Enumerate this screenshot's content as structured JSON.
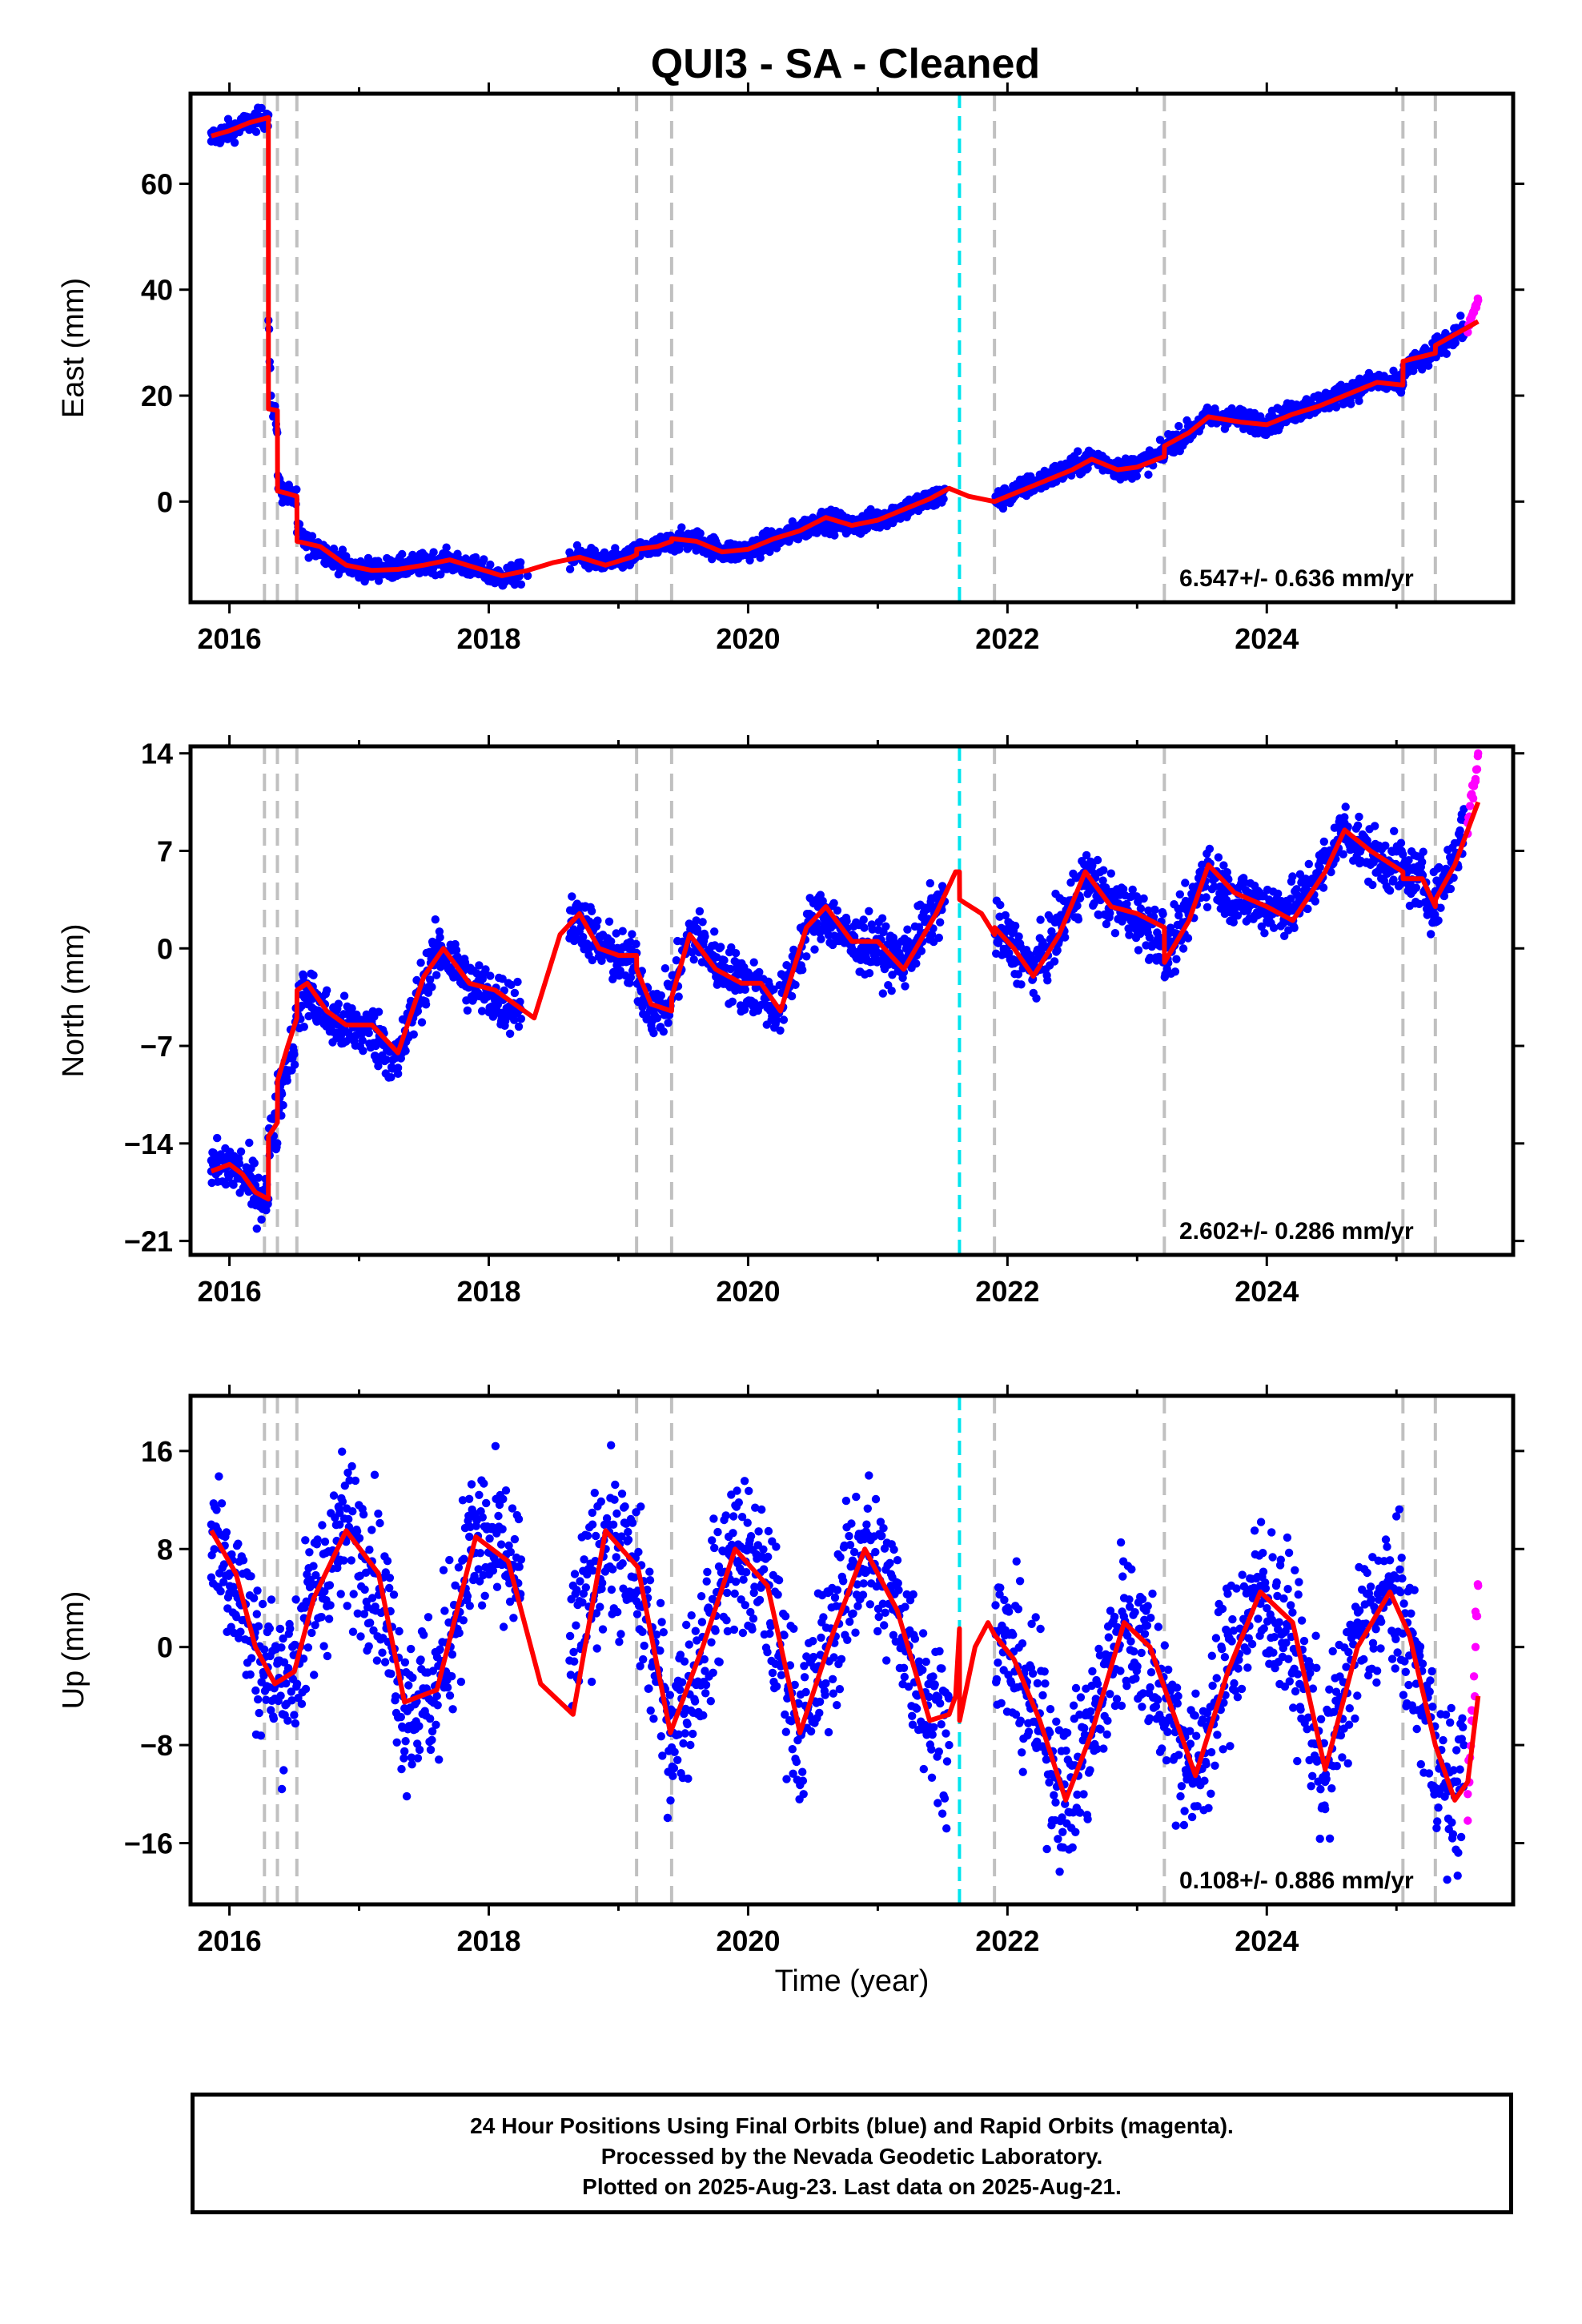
{
  "title": "QUI3  - SA - Cleaned",
  "xlabel": "Time (year)",
  "footer": {
    "line1": "24 Hour Positions Using Final Orbits (blue) and Rapid Orbits (magenta).",
    "line2": "Processed by the Nevada Geodetic Laboratory.",
    "line3": "Plotted on 2025-Aug-23. Last data on 2025-Aug-21."
  },
  "colors": {
    "final_orbits": "#0000ff",
    "rapid_orbits": "#ff00ff",
    "model_fit": "#ff0000",
    "antenna_change": "#c0c0c0",
    "earthquake": "#00e5ee"
  },
  "chart_data": [
    {
      "type": "scatter",
      "component": "east",
      "ylabel": "East (mm)",
      "ylim": [
        -19,
        77
      ],
      "xlim": [
        2015.7,
        2025.9
      ],
      "yticks": [
        0,
        20,
        40,
        60
      ],
      "xticks": [
        2016,
        2018,
        2020,
        2022,
        2024
      ],
      "rate": "6.547+/- 0.636 mm/yr",
      "antenna_change_lines": [
        2016.27,
        2016.37,
        2016.52,
        2019.14,
        2019.41,
        2021.9,
        2023.21,
        2025.05,
        2025.3
      ],
      "earthquake_lines": [
        2021.63
      ],
      "series": [
        {
          "kind": "final_orbits",
          "x": [
            2015.86,
            2016.0,
            2016.2,
            2016.3,
            2016.32,
            2016.4,
            2016.5,
            2016.6,
            2016.8,
            2017.0,
            2017.3,
            2017.6,
            2017.9,
            2018.1,
            2018.3,
            2018.7,
            2019.0,
            2019.3,
            2019.6,
            2019.9,
            2020.2,
            2020.5,
            2020.8,
            2021.1,
            2021.4,
            2021.91,
            2022.2,
            2022.5,
            2022.7,
            2022.9,
            2023.2,
            2023.5,
            2023.7,
            2024.0,
            2024.3,
            2024.6,
            2024.8,
            2025.05,
            2025.3,
            2025.52
          ],
          "values": [
            68,
            70,
            72,
            73,
            20,
            2,
            0,
            -8,
            -11,
            -13,
            -12,
            -11,
            -13,
            -15,
            -14,
            -10,
            -11,
            -9,
            -7,
            -10,
            -8,
            -4,
            -5,
            -2,
            0,
            0,
            4,
            7,
            9,
            6,
            10,
            15,
            17,
            15,
            19,
            21,
            23,
            22,
            28,
            33
          ]
        },
        {
          "kind": "rapid_orbits",
          "x": [
            2025.55,
            2025.58,
            2025.61,
            2025.63
          ],
          "values": [
            32,
            35,
            37,
            38
          ]
        }
      ],
      "model": {
        "x": [
          2015.86,
          2016.0,
          2016.15,
          2016.3,
          2016.301,
          2016.37,
          2016.371,
          2016.45,
          2016.52,
          2016.521,
          2016.7,
          2016.9,
          2017.1,
          2017.3,
          2017.5,
          2017.7,
          2017.9,
          2018.1,
          2018.3,
          2018.5,
          2018.7,
          2018.9,
          2019.1,
          2019.14,
          2019.141,
          2019.3,
          2019.41,
          2019.411,
          2019.6,
          2019.8,
          2020.0,
          2020.2,
          2020.4,
          2020.6,
          2020.8,
          2021.0,
          2021.2,
          2021.4,
          2021.55,
          2021.7,
          2021.9,
          2022.1,
          2022.3,
          2022.5,
          2022.65,
          2022.85,
          2023.0,
          2023.21,
          2023.211,
          2023.4,
          2023.55,
          2023.8,
          2024.0,
          2024.2,
          2024.4,
          2024.65,
          2024.85,
          2025.05,
          2025.051,
          2025.3,
          2025.301,
          2025.63
        ],
        "values": [
          69,
          70,
          71.5,
          72.5,
          17.5,
          17.2,
          2.0,
          1.5,
          1.0,
          -7.5,
          -8.5,
          -12.0,
          -13.0,
          -12.8,
          -12.0,
          -11.0,
          -12.5,
          -14.0,
          -13.0,
          -11.5,
          -10.5,
          -12.0,
          -10.5,
          -10.0,
          -9.0,
          -8.5,
          -7.5,
          -7.0,
          -7.5,
          -9.5,
          -9.0,
          -7.0,
          -5.5,
          -3.0,
          -4.5,
          -3.5,
          -1.5,
          0.5,
          2.5,
          1.0,
          0.0,
          2.0,
          4.0,
          6.0,
          8.0,
          6.0,
          6.5,
          8.5,
          10.5,
          13.0,
          16.0,
          15.0,
          14.5,
          16.5,
          18.0,
          20.5,
          22.5,
          22.0,
          26.5,
          28.0,
          29.5,
          34.0
        ]
      }
    },
    {
      "type": "scatter",
      "component": "north",
      "ylabel": "North (mm)",
      "ylim": [
        -22,
        14.5
      ],
      "xlim": [
        2015.7,
        2025.9
      ],
      "yticks": [
        -21,
        -14,
        -7,
        0,
        7,
        14
      ],
      "xticks": [
        2016,
        2018,
        2020,
        2022,
        2024
      ],
      "rate": "2.602+/- 0.286 mm/yr",
      "antenna_change_lines": [
        2016.27,
        2016.37,
        2016.52,
        2019.14,
        2019.41,
        2021.9,
        2023.21,
        2025.05,
        2025.3
      ],
      "earthquake_lines": [
        2021.63
      ],
      "series": [
        {
          "kind": "final_orbits",
          "x": [
            2015.86,
            2016.0,
            2016.2,
            2016.3,
            2016.32,
            2016.4,
            2016.6,
            2016.8,
            2017.0,
            2017.3,
            2017.6,
            2017.9,
            2018.1,
            2018.7,
            2019.0,
            2019.3,
            2019.6,
            2019.9,
            2020.2,
            2020.5,
            2020.8,
            2021.1,
            2021.4,
            2021.91,
            2022.2,
            2022.6,
            2022.9,
            2023.2,
            2023.5,
            2023.7,
            2024.0,
            2024.3,
            2024.6,
            2024.8,
            2025.05,
            2025.3,
            2025.52
          ],
          "values": [
            -16,
            -15.5,
            -17,
            -18,
            -13,
            -12,
            -4,
            -6,
            -6,
            -9,
            0,
            -3,
            -5,
            2,
            -1,
            -5,
            2,
            -2,
            -5,
            2,
            0,
            -1,
            3,
            1,
            -1,
            5,
            3,
            -1,
            6,
            3,
            3,
            5,
            9,
            6,
            6,
            3,
            10
          ]
        },
        {
          "kind": "rapid_orbits",
          "x": [
            2025.55,
            2025.58,
            2025.61,
            2025.63
          ],
          "values": [
            9,
            11,
            12,
            14
          ]
        }
      ],
      "model": {
        "x": [
          2015.86,
          2016.0,
          2016.1,
          2016.2,
          2016.3,
          2016.301,
          2016.37,
          2016.371,
          2016.45,
          2016.52,
          2016.521,
          2016.6,
          2016.75,
          2016.9,
          2017.1,
          2017.3,
          2017.5,
          2017.65,
          2017.85,
          2018.05,
          2018.2,
          2018.35,
          2018.55,
          2018.7,
          2018.85,
          2019.0,
          2019.14,
          2019.141,
          2019.25,
          2019.41,
          2019.411,
          2019.55,
          2019.75,
          2019.95,
          2020.1,
          2020.25,
          2020.45,
          2020.6,
          2020.8,
          2021.0,
          2021.2,
          2021.45,
          2021.6,
          2021.63,
          2021.631,
          2021.8,
          2021.9,
          2021.901,
          2022.05,
          2022.2,
          2022.4,
          2022.6,
          2022.8,
          2023.0,
          2023.21,
          2023.211,
          2023.4,
          2023.55,
          2023.75,
          2024.0,
          2024.2,
          2024.45,
          2024.6,
          2024.8,
          2025.05,
          2025.051,
          2025.2,
          2025.3,
          2025.301,
          2025.45,
          2025.63
        ],
        "values": [
          -16,
          -15.5,
          -16.2,
          -17.5,
          -18.0,
          -13.5,
          -12.5,
          -9.5,
          -7.0,
          -5.0,
          -3.0,
          -2.5,
          -4.5,
          -5.5,
          -5.5,
          -7.5,
          -2.0,
          0.0,
          -2.5,
          -3.0,
          -4.0,
          -5.0,
          1.0,
          2.5,
          0.0,
          -0.5,
          -0.5,
          -1.5,
          -4.0,
          -4.5,
          -3.5,
          1.0,
          -1.5,
          -2.5,
          -2.5,
          -4.5,
          1.5,
          3.0,
          0.5,
          0.5,
          -1.5,
          2.5,
          5.5,
          5.5,
          3.5,
          2.5,
          1.0,
          1.5,
          0.0,
          -2.0,
          1.0,
          5.5,
          3.0,
          2.5,
          1.5,
          -1.0,
          2.0,
          6.0,
          4.0,
          3.0,
          2.0,
          5.5,
          8.5,
          7.0,
          5.5,
          5.0,
          5.0,
          3.0,
          3.5,
          6.0,
          10.5
        ]
      }
    },
    {
      "type": "scatter",
      "component": "up",
      "ylabel": "Up (mm)",
      "ylim": [
        -21,
        20.5
      ],
      "xlim": [
        2015.7,
        2025.9
      ],
      "yticks": [
        -16,
        -8,
        0,
        8,
        16
      ],
      "xticks": [
        2016,
        2018,
        2020,
        2022,
        2024
      ],
      "rate": "0.108+/- 0.886 mm/yr",
      "antenna_change_lines": [
        2016.27,
        2016.37,
        2016.52,
        2019.14,
        2019.41,
        2021.9,
        2023.21,
        2025.05,
        2025.3
      ],
      "earthquake_lines": [
        2021.63
      ],
      "series": [
        {
          "kind": "final_orbits",
          "x": [
            2015.86,
            2016.0,
            2016.2,
            2016.4,
            2016.6,
            2016.85,
            2017.1,
            2017.35,
            2017.6,
            2017.85,
            2018.1,
            2018.8,
            2019.1,
            2019.4,
            2019.6,
            2019.85,
            2020.1,
            2020.4,
            2020.6,
            2020.85,
            2021.1,
            2021.4,
            2021.55,
            2021.91,
            2022.15,
            2022.45,
            2022.7,
            2022.9,
            2023.2,
            2023.45,
            2023.7,
            2023.95,
            2024.2,
            2024.45,
            2024.7,
            2024.95,
            2025.2,
            2025.4,
            2025.52
          ],
          "values": [
            10,
            6,
            0,
            -3,
            2,
            10,
            7,
            -5,
            -4,
            9,
            7,
            10,
            4,
            -7,
            -3,
            9,
            5,
            -7,
            0,
            9,
            5,
            -3,
            -8,
            1,
            -4,
            -12,
            -5,
            4,
            -6,
            -11,
            1,
            5,
            -2,
            -11,
            2,
            5,
            -5,
            -14,
            -8
          ]
        },
        {
          "kind": "rapid_orbits",
          "x": [
            2025.55,
            2025.58,
            2025.61,
            2025.63
          ],
          "values": [
            -12,
            -6,
            0,
            5
          ]
        }
      ],
      "model": {
        "x": [
          2015.86,
          2016.05,
          2016.2,
          2016.35,
          2016.5,
          2016.65,
          2016.9,
          2017.15,
          2017.35,
          2017.6,
          2017.9,
          2018.15,
          2018.4,
          2018.65,
          2018.9,
          2019.15,
          2019.4,
          2019.65,
          2019.9,
          2020.15,
          2020.4,
          2020.65,
          2020.9,
          2021.15,
          2021.4,
          2021.55,
          2021.6,
          2021.63,
          2021.631,
          2021.75,
          2021.85,
          2021.9,
          2022.05,
          2022.25,
          2022.45,
          2022.65,
          2022.9,
          2023.1,
          2023.3,
          2023.45,
          2023.7,
          2023.95,
          2024.2,
          2024.45,
          2024.7,
          2024.95,
          2025.1,
          2025.3,
          2025.45,
          2025.55,
          2025.63
        ],
        "values": [
          9.5,
          6.0,
          0.0,
          -3.0,
          -2.0,
          4.0,
          9.5,
          6.0,
          -4.5,
          -3.5,
          9.0,
          7.0,
          -3.0,
          -5.5,
          9.5,
          6.5,
          -7.0,
          0.0,
          8.0,
          5.0,
          -7.0,
          1.0,
          8.0,
          3.0,
          -6.0,
          -5.5,
          -4.0,
          1.5,
          -6.0,
          0.0,
          2.0,
          1.0,
          -1.0,
          -6.0,
          -12.5,
          -7.0,
          2.0,
          0.0,
          -6.0,
          -10.5,
          -2.0,
          4.5,
          2.0,
          -10.0,
          0.0,
          4.5,
          1.0,
          -8.0,
          -12.5,
          -11.0,
          -4.0
        ]
      }
    }
  ]
}
